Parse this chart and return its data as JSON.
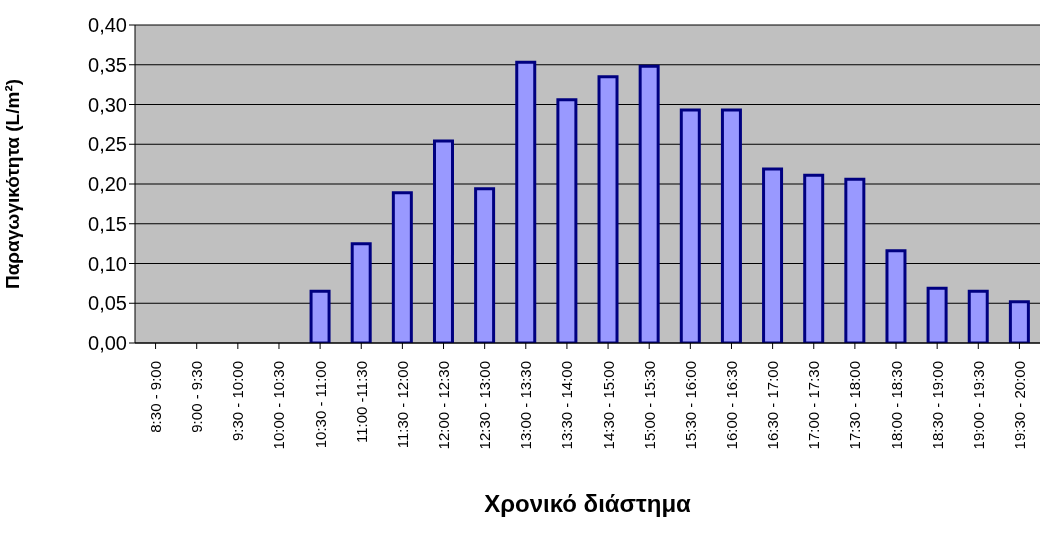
{
  "chart_data": {
    "type": "bar",
    "xlabel": "Χρονικό διάστημα",
    "ylabel": "Παραγωγικότητα (L/m²)",
    "categories": [
      "8:30 - 9:00",
      "9:00 - 9:30",
      "9:30 - 10:00",
      "10:00 - 10:30",
      "10:30 - 11:00",
      "11:00 -11:30",
      "11:30 - 12:00",
      "12:00 - 12:30",
      "12:30 - 13:00",
      "13:00 - 13:30",
      "13:30 - 14:00",
      "14:30 - 15:00",
      "15:00 - 15:30",
      "15:30 - 16:00",
      "16:00 - 16:30",
      "16:30 - 17:00",
      "17:00 - 17:30",
      "17:30 - 18:00",
      "18:00 - 18:30",
      "18:30 - 19:00",
      "19:00 - 19:30",
      "19:30 - 20:00"
    ],
    "values": [
      0,
      0,
      0,
      0,
      0.065,
      0.125,
      0.189,
      0.254,
      0.194,
      0.353,
      0.306,
      0.335,
      0.348,
      0.293,
      0.293,
      0.219,
      0.211,
      0.206,
      0.116,
      0.069,
      0.065,
      0.052
    ],
    "color": "#9999ff",
    "ylim": [
      0,
      0.4
    ],
    "yticks": [
      {
        "value": 0,
        "label": "0,00"
      },
      {
        "value": 0.05,
        "label": "0,05"
      },
      {
        "value": 0.1,
        "label": "0,10"
      },
      {
        "value": 0.15,
        "label": "0,15"
      },
      {
        "value": 0.2,
        "label": "0,20"
      },
      {
        "value": 0.25,
        "label": "0,25"
      },
      {
        "value": 0.3,
        "label": "0,30"
      },
      {
        "value": 0.35,
        "label": "0,35"
      },
      {
        "value": 0.4,
        "label": "0,40"
      }
    ],
    "grid": "y",
    "legend": false
  }
}
